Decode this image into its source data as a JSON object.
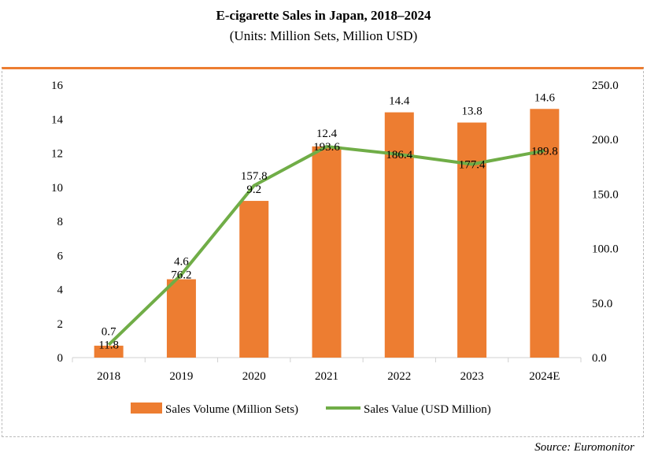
{
  "chart_data": {
    "type": "bar+line",
    "title": "E-cigarette Sales in Japan, 2018‒2024",
    "subtitle": "(Units: Million Sets, Million USD)",
    "categories": [
      "2018",
      "2019",
      "2020",
      "2021",
      "2022",
      "2023",
      "2024E"
    ],
    "series": [
      {
        "name": "Sales Volume (Million Sets)",
        "type": "bar",
        "axis": "left",
        "color": "#ED7D31",
        "values": [
          0.7,
          4.6,
          9.2,
          12.4,
          14.4,
          13.8,
          14.6
        ],
        "labels": [
          "0.7",
          "4.6",
          "9.2",
          "12.4",
          "14.4",
          "13.8",
          "14.6"
        ]
      },
      {
        "name": "Sales Value (USD Million)",
        "type": "line",
        "axis": "right",
        "color": "#70AD47",
        "values": [
          11.8,
          76.2,
          157.8,
          193.6,
          186.4,
          177.4,
          189.8
        ],
        "labels": [
          "11.8",
          "76.2",
          "157.8",
          "193.6",
          "186.4",
          "177.4",
          "189.8"
        ]
      }
    ],
    "y_left": {
      "range": [
        0,
        16
      ],
      "ticks": [
        "0",
        "2",
        "4",
        "6",
        "8",
        "10",
        "12",
        "14",
        "16"
      ]
    },
    "y_right": {
      "range": [
        0,
        250
      ],
      "ticks": [
        "0.0",
        "50.0",
        "100.0",
        "150.0",
        "200.0",
        "250.0"
      ]
    },
    "legend": "bottom",
    "grid": false
  },
  "source": "Source:  Euromonitor"
}
